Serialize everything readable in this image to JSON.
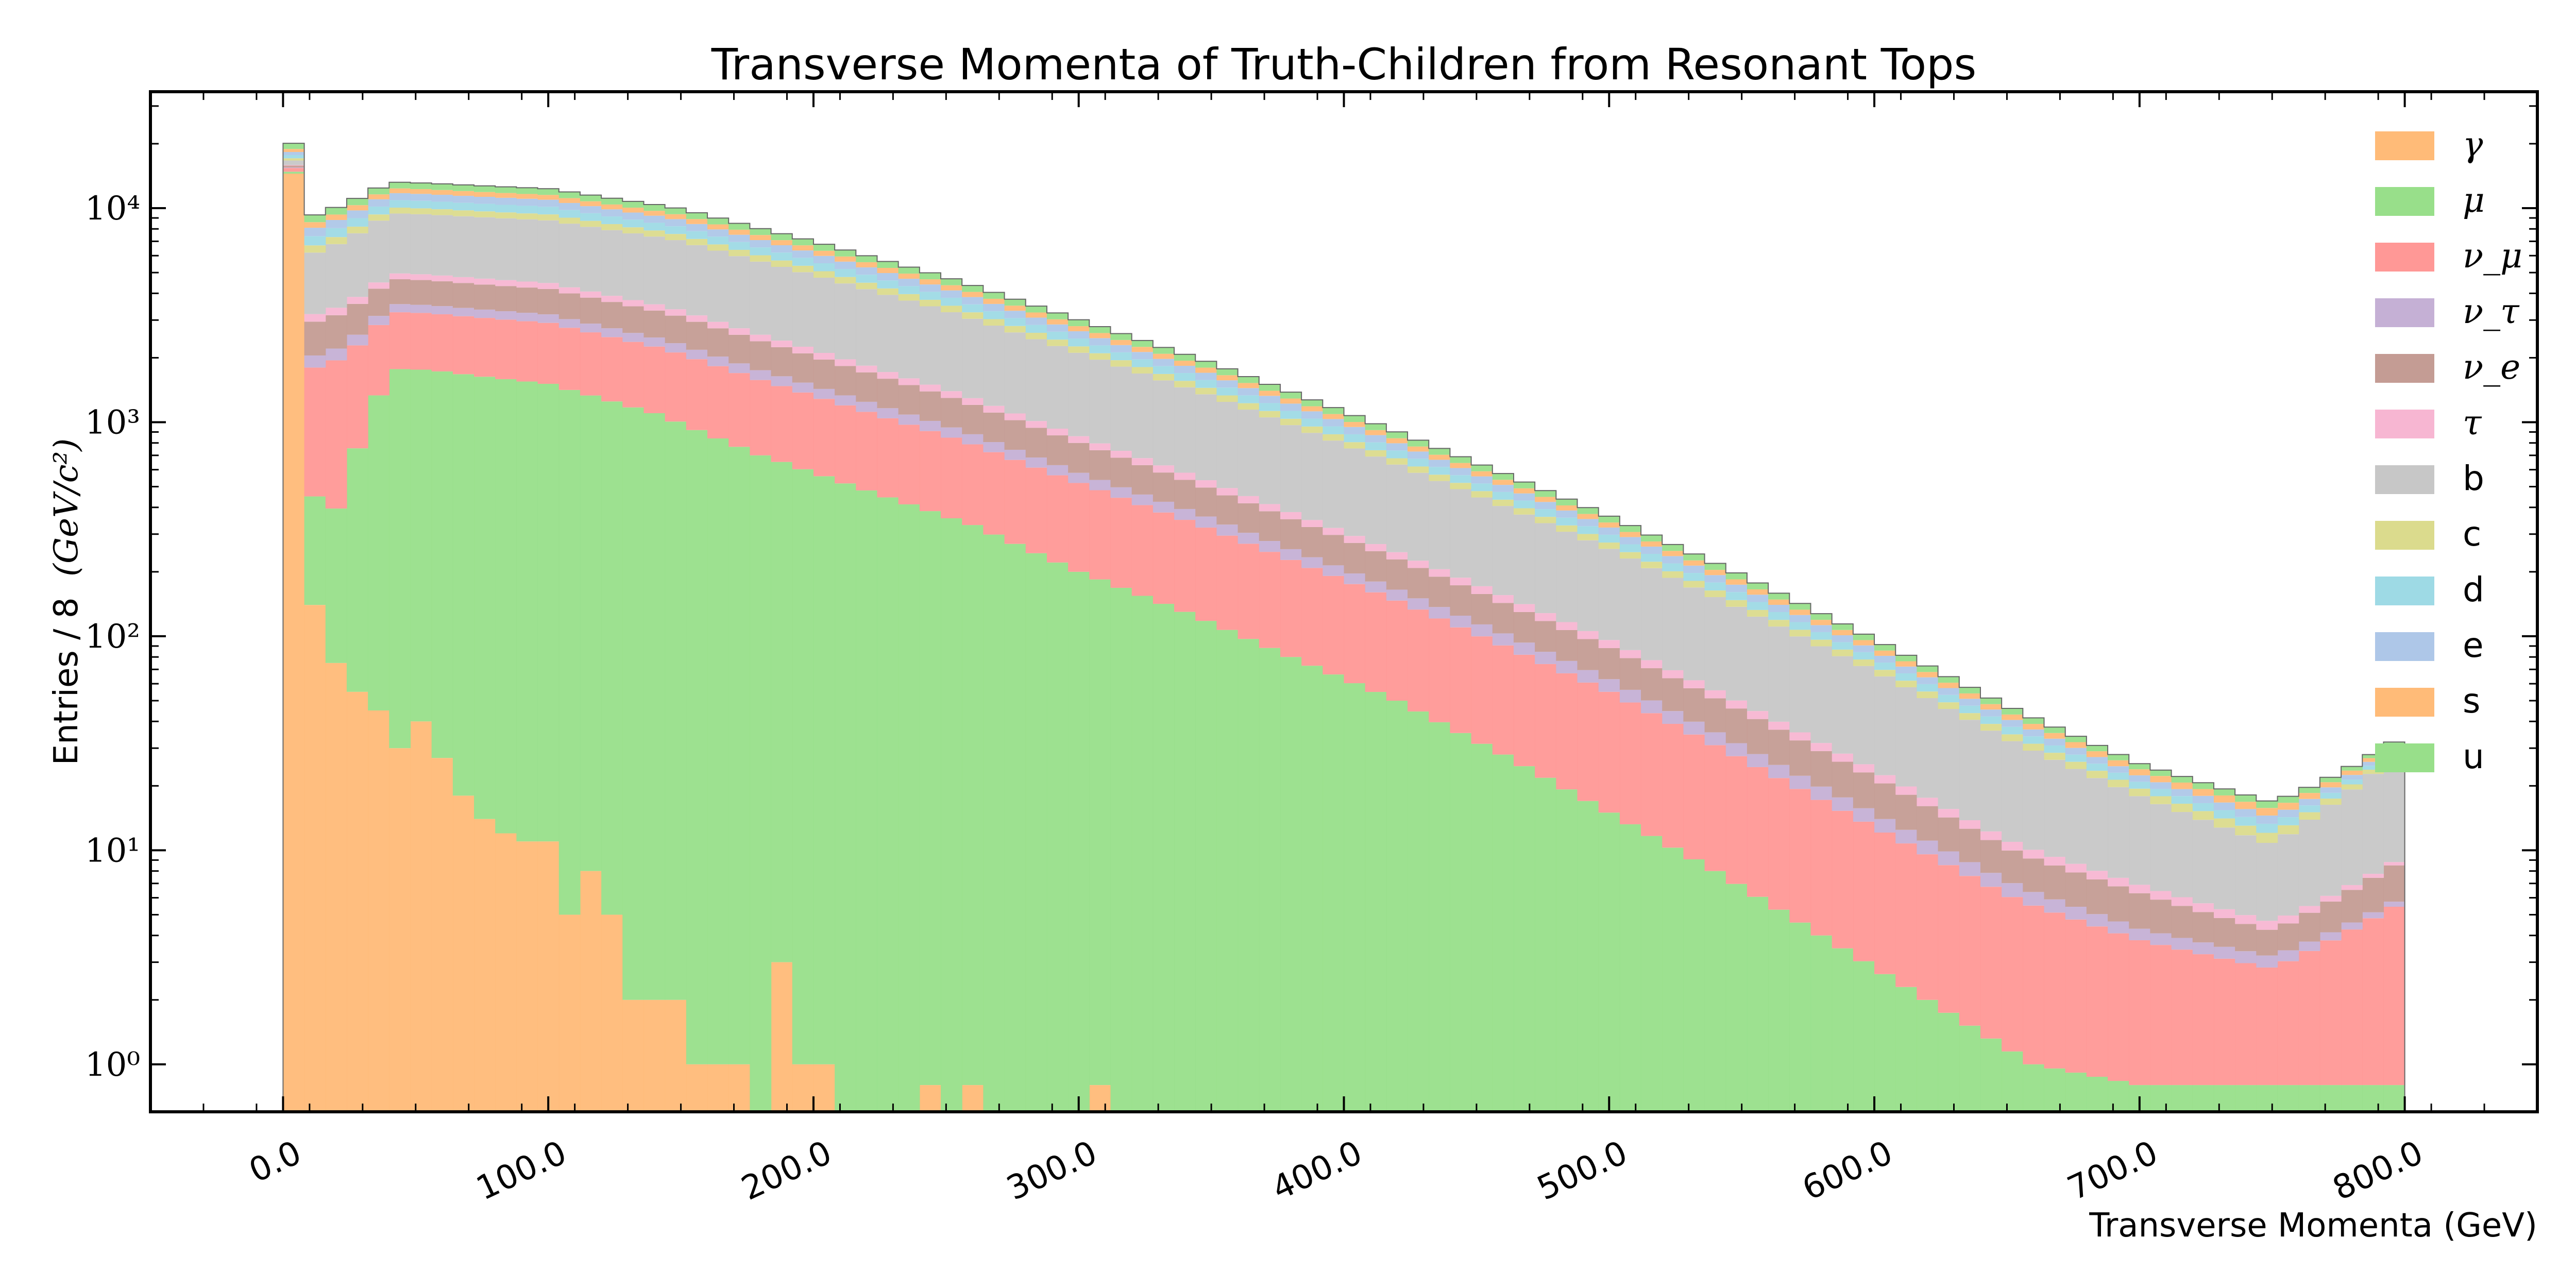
{
  "chart_data": {
    "type": "bar",
    "stacked": true,
    "histogram": true,
    "title": "Transverse Momenta of Truth-Children from Resonant Tops",
    "xlabel": "Transverse Momenta (GeV)",
    "ylabel": "Entries / 8",
    "ylabel_unit": "(GeV/c²)",
    "xlim": [
      -50,
      850
    ],
    "xticks": [
      0,
      100,
      200,
      300,
      400,
      500,
      600,
      700,
      800
    ],
    "xtick_labels": [
      "0.0",
      "100.0",
      "200.0",
      "300.0",
      "400.0",
      "500.0",
      "600.0",
      "700.0",
      "800.0"
    ],
    "ylog": true,
    "ylim": [
      0.6,
      35000
    ],
    "yticks": [
      1,
      10,
      100,
      1000,
      10000
    ],
    "ytick_labels": [
      "10⁰",
      "10¹",
      "10²",
      "10³",
      "10⁴"
    ],
    "bin_width": 8,
    "bin_range": [
      0,
      800
    ],
    "legend_position": "top-right",
    "series": [
      {
        "name": "γ",
        "color": "#ffbb78",
        "italic": true,
        "anchors": [
          [
            4,
            14500
          ],
          [
            12,
            140
          ],
          [
            20,
            75
          ],
          [
            28,
            55
          ],
          [
            36,
            45
          ],
          [
            44,
            30
          ],
          [
            52,
            40
          ],
          [
            60,
            27
          ],
          [
            68,
            18
          ],
          [
            76,
            14
          ],
          [
            84,
            12
          ],
          [
            92,
            11
          ],
          [
            100,
            11
          ],
          [
            108,
            5
          ],
          [
            116,
            8
          ],
          [
            124,
            5
          ],
          [
            132,
            2
          ],
          [
            140,
            2
          ],
          [
            148,
            2
          ],
          [
            156,
            1
          ],
          [
            164,
            1
          ],
          [
            172,
            0
          ],
          [
            180,
            1
          ],
          [
            188,
            3
          ],
          [
            196,
            1
          ],
          [
            204,
            0
          ],
          [
            236,
            0.8
          ],
          [
            244,
            0
          ],
          [
            252,
            0.8
          ],
          [
            260,
            0
          ],
          [
            300,
            0.8
          ],
          [
            308,
            0
          ]
        ]
      },
      {
        "name": "μ",
        "color": "#98df8a",
        "italic": true,
        "anchors": [
          [
            4,
            300
          ],
          [
            12,
            310
          ],
          [
            20,
            320
          ],
          [
            28,
            700
          ],
          [
            40,
            1750
          ],
          [
            60,
            1700
          ],
          [
            100,
            1500
          ],
          [
            140,
            1100
          ],
          [
            180,
            700
          ],
          [
            220,
            480
          ],
          [
            260,
            330
          ],
          [
            300,
            200
          ],
          [
            340,
            130
          ],
          [
            380,
            80
          ],
          [
            420,
            50
          ],
          [
            460,
            28
          ],
          [
            500,
            15
          ],
          [
            540,
            8
          ],
          [
            580,
            4
          ],
          [
            620,
            2
          ],
          [
            660,
            1
          ],
          [
            700,
            0.8
          ],
          [
            740,
            0.8
          ],
          [
            780,
            0.8
          ],
          [
            800,
            0.8
          ]
        ]
      },
      {
        "name": "ν_μ",
        "color": "#ff9896",
        "italic": true,
        "anchors": [
          [
            4,
            600
          ],
          [
            12,
            1350
          ],
          [
            20,
            1550
          ],
          [
            40,
            1500
          ],
          [
            100,
            1400
          ],
          [
            150,
            1100
          ],
          [
            200,
            750
          ],
          [
            250,
            500
          ],
          [
            300,
            320
          ],
          [
            350,
            200
          ],
          [
            400,
            120
          ],
          [
            450,
            70
          ],
          [
            500,
            40
          ],
          [
            550,
            20
          ],
          [
            600,
            10
          ],
          [
            650,
            5
          ],
          [
            700,
            3
          ],
          [
            750,
            2
          ],
          [
            800,
            5
          ]
        ]
      },
      {
        "name": "ν_τ",
        "color": "#c5b0d5",
        "italic": true,
        "anchors": [
          [
            4,
            100
          ],
          [
            12,
            250
          ],
          [
            40,
            300
          ],
          [
            100,
            280
          ],
          [
            150,
            220
          ],
          [
            200,
            150
          ],
          [
            250,
            100
          ],
          [
            300,
            60
          ],
          [
            350,
            40
          ],
          [
            400,
            22
          ],
          [
            450,
            14
          ],
          [
            500,
            8
          ],
          [
            550,
            4
          ],
          [
            600,
            2
          ],
          [
            650,
            1
          ],
          [
            700,
            0.5
          ],
          [
            800,
            0.3
          ]
        ]
      },
      {
        "name": "ν_e",
        "color": "#c49c94",
        "italic": true,
        "anchors": [
          [
            4,
            300
          ],
          [
            12,
            900
          ],
          [
            40,
            1100
          ],
          [
            100,
            1000
          ],
          [
            150,
            800
          ],
          [
            200,
            550
          ],
          [
            250,
            360
          ],
          [
            300,
            220
          ],
          [
            350,
            130
          ],
          [
            400,
            80
          ],
          [
            450,
            45
          ],
          [
            500,
            25
          ],
          [
            550,
            14
          ],
          [
            600,
            7
          ],
          [
            650,
            3
          ],
          [
            700,
            2
          ],
          [
            750,
            1
          ],
          [
            800,
            3
          ]
        ]
      },
      {
        "name": "τ",
        "color": "#f7b6d2",
        "italic": true,
        "anchors": [
          [
            4,
            100
          ],
          [
            12,
            250
          ],
          [
            40,
            300
          ],
          [
            100,
            280
          ],
          [
            150,
            220
          ],
          [
            200,
            150
          ],
          [
            250,
            100
          ],
          [
            300,
            60
          ],
          [
            350,
            40
          ],
          [
            400,
            22
          ],
          [
            450,
            14
          ],
          [
            500,
            8
          ],
          [
            550,
            4
          ],
          [
            600,
            2
          ],
          [
            650,
            1
          ],
          [
            700,
            0.6
          ],
          [
            800,
            0.3
          ]
        ]
      },
      {
        "name": "b",
        "color": "#c7c7c7",
        "italic": false,
        "anchors": [
          [
            4,
            800
          ],
          [
            12,
            3000
          ],
          [
            40,
            4500
          ],
          [
            100,
            4300
          ],
          [
            150,
            3700
          ],
          [
            200,
            2700
          ],
          [
            250,
            1900
          ],
          [
            300,
            1250
          ],
          [
            350,
            800
          ],
          [
            400,
            480
          ],
          [
            450,
            280
          ],
          [
            500,
            160
          ],
          [
            550,
            85
          ],
          [
            600,
            45
          ],
          [
            650,
            22
          ],
          [
            700,
            11
          ],
          [
            750,
            6
          ],
          [
            800,
            20
          ]
        ]
      },
      {
        "name": "c",
        "color": "#dbdb8d",
        "italic": false,
        "anchors": [
          [
            4,
            400
          ],
          [
            12,
            500
          ],
          [
            40,
            620
          ],
          [
            100,
            580
          ],
          [
            150,
            480
          ],
          [
            200,
            350
          ],
          [
            250,
            240
          ],
          [
            300,
            150
          ],
          [
            350,
            95
          ],
          [
            400,
            55
          ],
          [
            450,
            32
          ],
          [
            500,
            18
          ],
          [
            550,
            10
          ],
          [
            600,
            5
          ],
          [
            650,
            2.5
          ],
          [
            700,
            1.5
          ],
          [
            800,
            1
          ]
        ]
      },
      {
        "name": "d",
        "color": "#9edae5",
        "italic": false,
        "anchors": [
          [
            4,
            600
          ],
          [
            12,
            700
          ],
          [
            40,
            850
          ],
          [
            100,
            800
          ],
          [
            150,
            650
          ],
          [
            200,
            470
          ],
          [
            250,
            320
          ],
          [
            300,
            200
          ],
          [
            350,
            125
          ],
          [
            400,
            75
          ],
          [
            450,
            42
          ],
          [
            500,
            24
          ],
          [
            550,
            13
          ],
          [
            600,
            6
          ],
          [
            650,
            3
          ],
          [
            700,
            1.5
          ],
          [
            800,
            1
          ]
        ]
      },
      {
        "name": "e",
        "color": "#aec7e8",
        "italic": false,
        "anchors": [
          [
            4,
            600
          ],
          [
            12,
            700
          ],
          [
            40,
            850
          ],
          [
            100,
            800
          ],
          [
            150,
            650
          ],
          [
            200,
            470
          ],
          [
            250,
            320
          ],
          [
            300,
            200
          ],
          [
            350,
            125
          ],
          [
            400,
            75
          ],
          [
            450,
            42
          ],
          [
            500,
            24
          ],
          [
            550,
            13
          ],
          [
            600,
            6
          ],
          [
            650,
            3
          ],
          [
            700,
            1.5
          ],
          [
            800,
            1
          ]
        ]
      },
      {
        "name": "s",
        "color": "#ffbb78",
        "italic": false,
        "anchors": [
          [
            4,
            600
          ],
          [
            12,
            500
          ],
          [
            40,
            620
          ],
          [
            100,
            580
          ],
          [
            150,
            480
          ],
          [
            200,
            350
          ],
          [
            250,
            240
          ],
          [
            300,
            150
          ],
          [
            350,
            95
          ],
          [
            400,
            55
          ],
          [
            450,
            32
          ],
          [
            500,
            18
          ],
          [
            550,
            10
          ],
          [
            600,
            5
          ],
          [
            650,
            2.5
          ],
          [
            700,
            1.5
          ],
          [
            800,
            1
          ]
        ]
      },
      {
        "name": "u",
        "color": "#98df8a",
        "italic": false,
        "anchors": [
          [
            4,
            1200
          ],
          [
            12,
            700
          ],
          [
            40,
            850
          ],
          [
            100,
            800
          ],
          [
            150,
            650
          ],
          [
            200,
            470
          ],
          [
            250,
            320
          ],
          [
            300,
            200
          ],
          [
            350,
            125
          ],
          [
            400,
            75
          ],
          [
            450,
            42
          ],
          [
            500,
            24
          ],
          [
            550,
            13
          ],
          [
            600,
            6
          ],
          [
            650,
            3
          ],
          [
            700,
            1.5
          ],
          [
            800,
            1
          ]
        ]
      }
    ]
  }
}
